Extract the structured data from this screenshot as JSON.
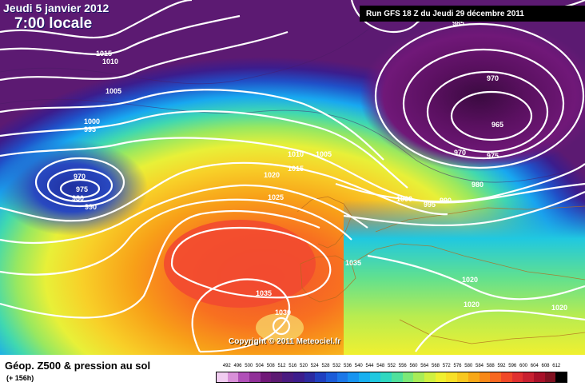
{
  "header": {
    "date": "Jeudi 5 janvier 2012",
    "time": "7:00 locale",
    "run": "Run GFS 18 Z du Jeudi 29 décembre 2011"
  },
  "copyright": "Copyright © 2011 Meteociel.fr",
  "footer": {
    "title": "Géop. Z500 & pression au sol",
    "subtitle": "(+ 156h)"
  },
  "isobar_labels": [
    "1015",
    "1010",
    "1005",
    "1000",
    "995",
    "970",
    "975",
    "980",
    "990",
    "1010",
    "1005",
    "1015",
    "1020",
    "1025",
    "1000",
    "995",
    "990",
    "980",
    "970",
    "975",
    "965",
    "970",
    "1035",
    "1035",
    "1030",
    "1020",
    "1020",
    "1020",
    "985",
    "1000"
  ],
  "legend": {
    "ticks": [
      "492",
      "496",
      "500",
      "504",
      "508",
      "512",
      "516",
      "520",
      "524",
      "528",
      "532",
      "536",
      "540",
      "544",
      "548",
      "552",
      "556",
      "560",
      "564",
      "568",
      "572",
      "576",
      "580",
      "584",
      "588",
      "592",
      "596",
      "600",
      "604",
      "608",
      "612"
    ],
    "colors": [
      "#f0ccf0",
      "#d890d8",
      "#b050b8",
      "#903098",
      "#701878",
      "#5c1a72",
      "#4a1a80",
      "#3c1c8c",
      "#2c2aa0",
      "#2040c0",
      "#1c5cd8",
      "#1c78e8",
      "#1894f0",
      "#18b0f0",
      "#20c8e0",
      "#30d8c0",
      "#50e09c",
      "#7ce878",
      "#a8ec58",
      "#d0f040",
      "#f0f030",
      "#f8e028",
      "#f8c820",
      "#f8a818",
      "#f88818",
      "#f86820",
      "#f04828",
      "#e03030",
      "#c82030",
      "#a81028",
      "#801020"
    ],
    "end_color": "#000000"
  }
}
